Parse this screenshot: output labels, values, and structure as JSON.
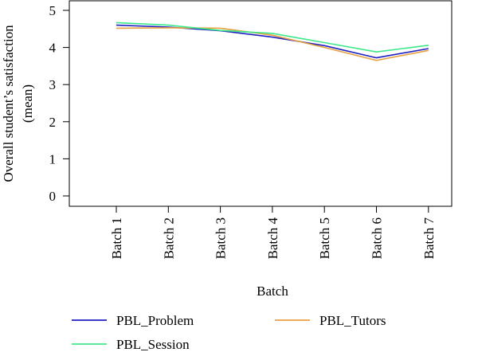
{
  "chart_data": {
    "type": "line",
    "xlabel": "Batch",
    "ylabel_lines": [
      "Overall student’s satisfaction",
      "(mean)"
    ],
    "categories": [
      "Batch 1",
      "Batch 2",
      "Batch 3",
      "Batch 4",
      "Batch 5",
      "Batch 6",
      "Batch 7"
    ],
    "ylim": [
      -0.3,
      5.2
    ],
    "yticks": [
      0,
      1,
      2,
      3,
      4,
      5
    ],
    "grid": false,
    "legend_position": "bottom",
    "series": [
      {
        "name": "PBL_Problem",
        "color": "#1f1fc2",
        "values": [
          4.6,
          4.55,
          4.45,
          4.28,
          4.05,
          3.72,
          3.97
        ]
      },
      {
        "name": "PBL_Tutors",
        "color": "#e8a040",
        "values": [
          4.52,
          4.53,
          4.52,
          4.33,
          4.0,
          3.65,
          3.92
        ]
      },
      {
        "name": "PBL_Session",
        "color": "#3de88a",
        "values": [
          4.67,
          4.6,
          4.46,
          4.38,
          4.13,
          3.88,
          4.06
        ]
      }
    ]
  }
}
